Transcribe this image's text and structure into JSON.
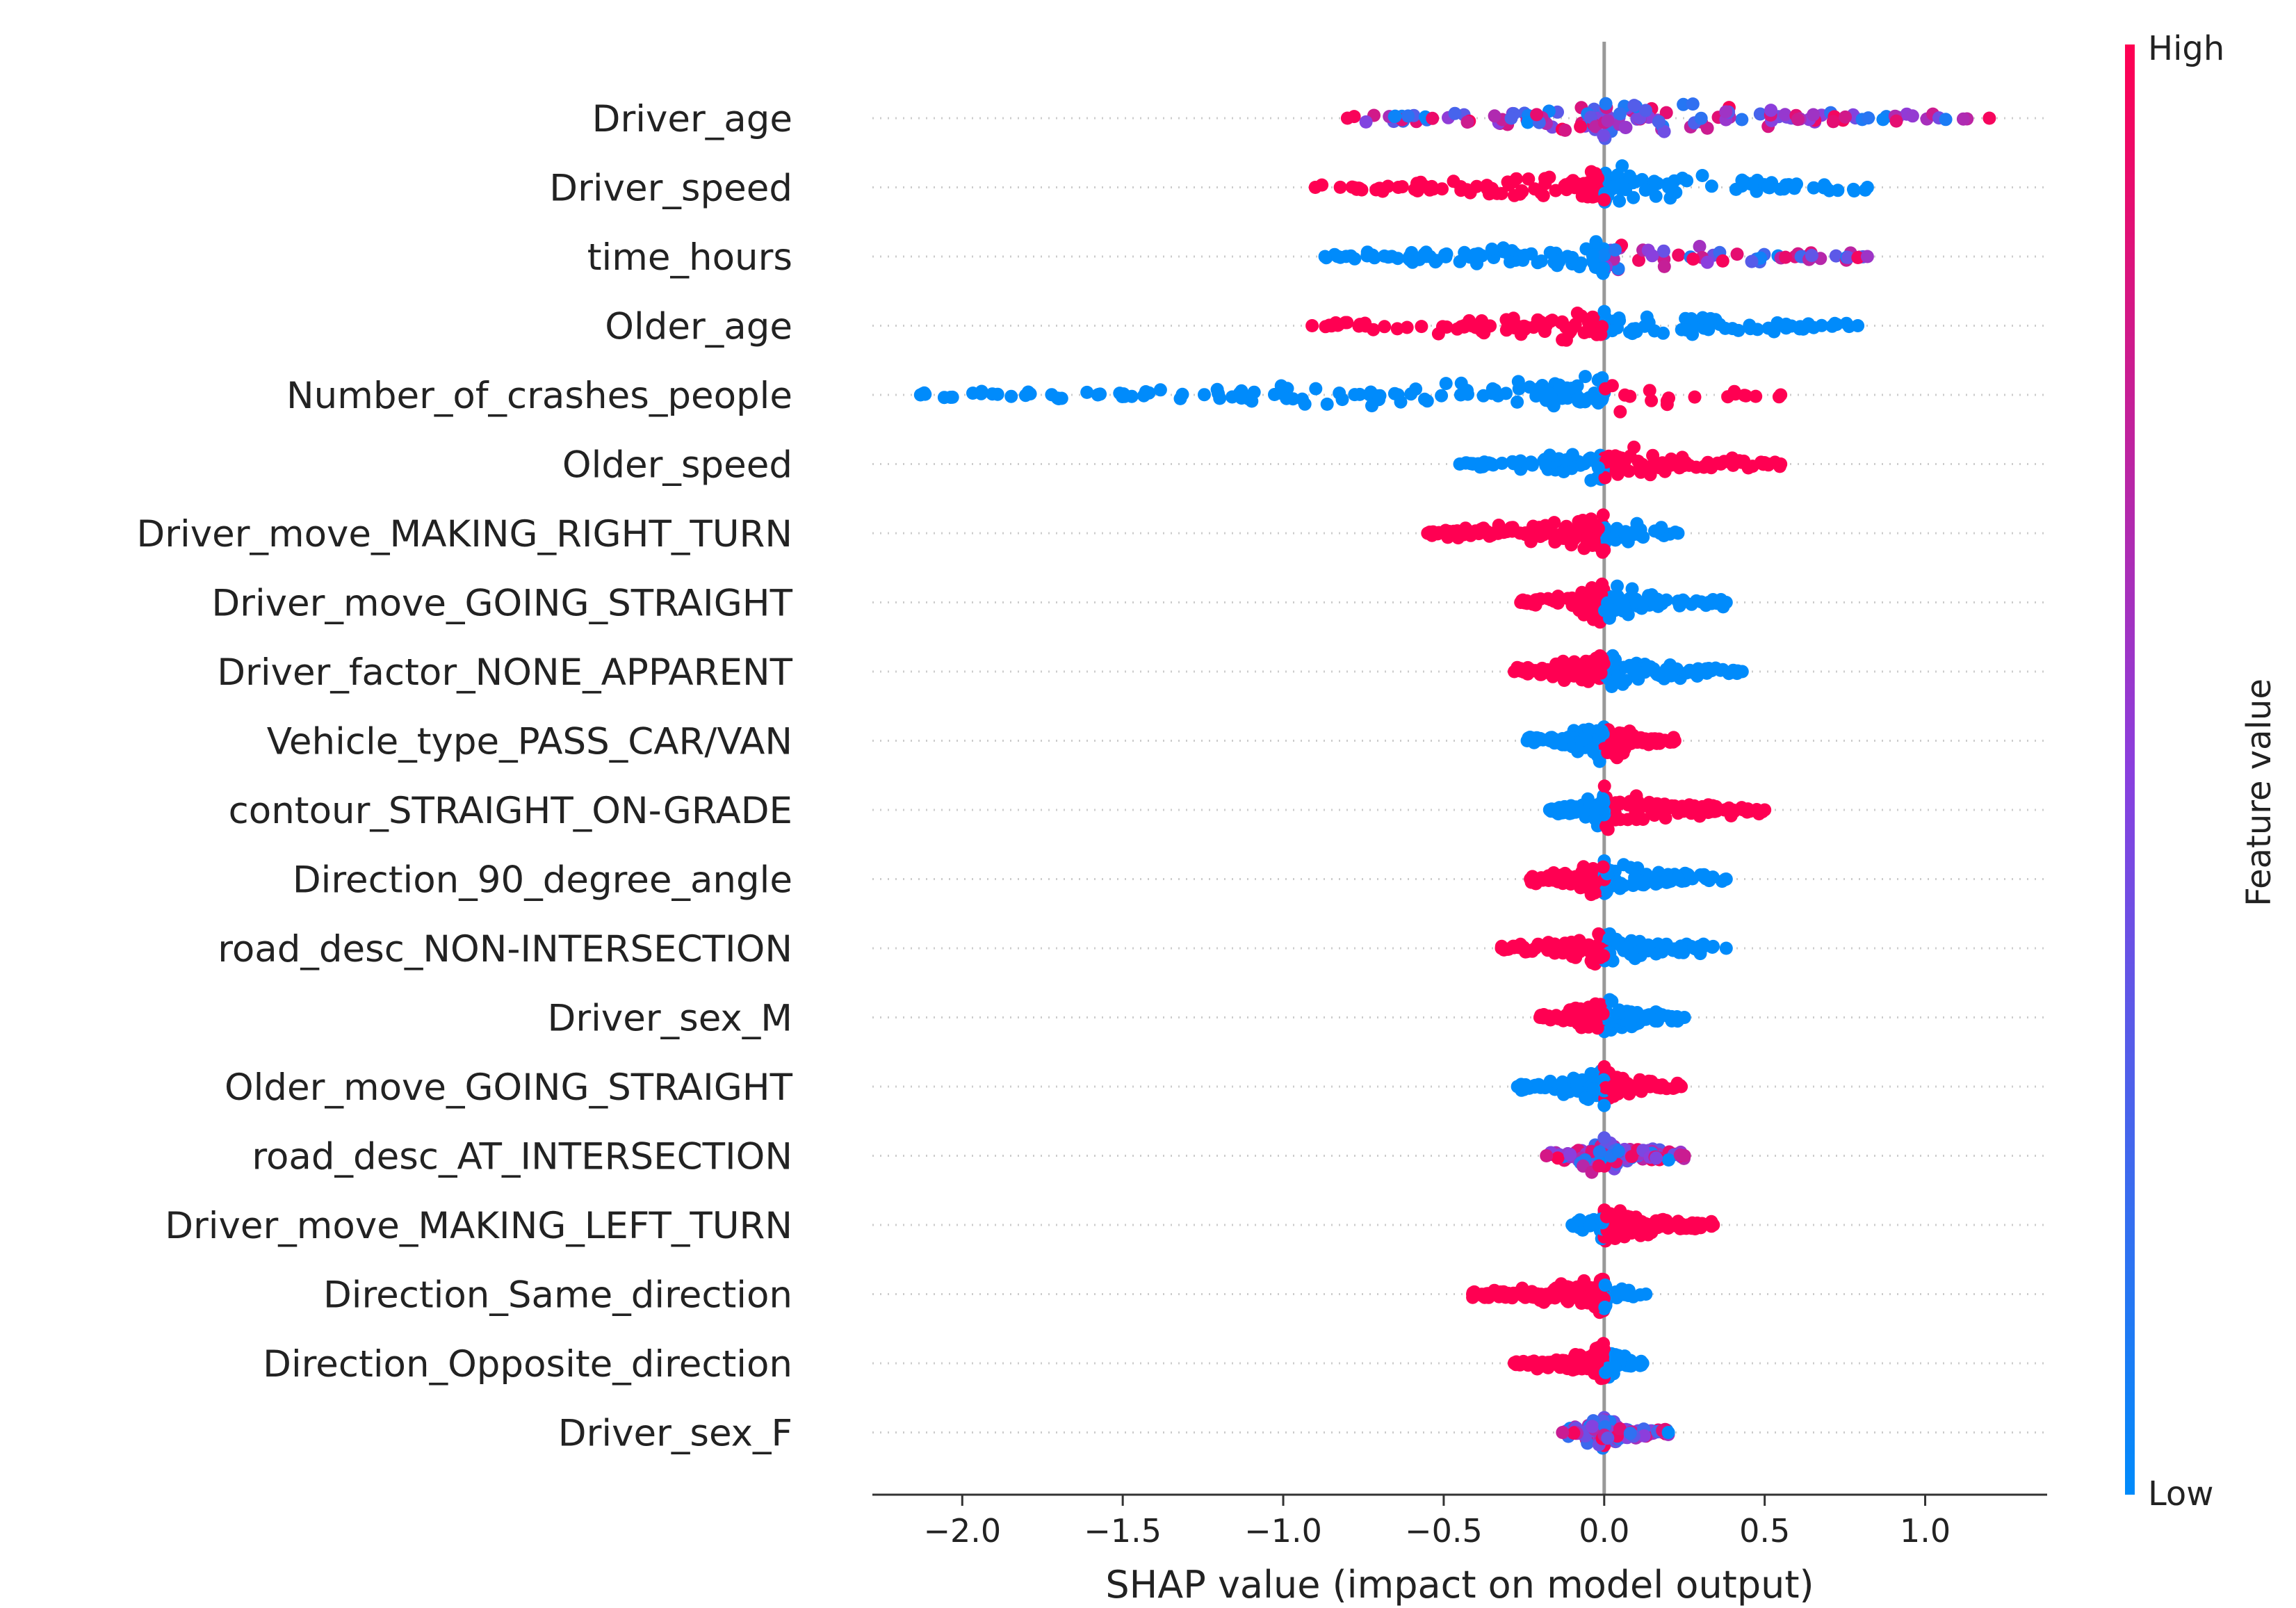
{
  "chart_data": {
    "type": "scatter",
    "subtype": "shap_beeswarm",
    "xlabel": "SHAP value (impact on model output)",
    "xlim": [
      -2.28,
      1.38
    ],
    "xticks": [
      -2.0,
      -1.5,
      -1.0,
      -0.5,
      0.0,
      0.5,
      1.0
    ],
    "xtick_labels": [
      "−2.0",
      "−1.5",
      "−1.0",
      "−0.5",
      "0.0",
      "0.5",
      "1.0"
    ],
    "colorbar": {
      "title": "Feature value",
      "high_label": "High",
      "low_label": "Low",
      "high_color": "#ff0052",
      "low_color": "#008bfb"
    },
    "features": [
      {
        "name": "Driver_age",
        "min": -0.8,
        "max": 1.2,
        "left_color": "mixed",
        "right_color": "mixed"
      },
      {
        "name": "Driver_speed",
        "min": -0.9,
        "max": 0.82,
        "left_color": "high",
        "right_color": "low"
      },
      {
        "name": "time_hours",
        "min": -0.87,
        "max": 0.82,
        "left_color": "low",
        "right_color": "mixed"
      },
      {
        "name": "Older_age",
        "min": -0.91,
        "max": 0.79,
        "left_color": "high",
        "right_color": "low"
      },
      {
        "name": "Number_of_crashes_people",
        "min": -2.13,
        "max": 0.55,
        "left_color": "low",
        "right_color": "high"
      },
      {
        "name": "Older_speed",
        "min": -0.45,
        "max": 0.55,
        "left_color": "low",
        "right_color": "high"
      },
      {
        "name": "Driver_move_MAKING_RIGHT_TURN",
        "min": -0.55,
        "max": 0.23,
        "left_color": "high",
        "right_color": "low"
      },
      {
        "name": "Driver_move_GOING_STRAIGHT",
        "min": -0.26,
        "max": 0.38,
        "left_color": "high",
        "right_color": "low"
      },
      {
        "name": "Driver_factor_NONE_APPARENT",
        "min": -0.28,
        "max": 0.43,
        "left_color": "high",
        "right_color": "low"
      },
      {
        "name": "Vehicle_type_PASS_CAR/VAN",
        "min": -0.24,
        "max": 0.22,
        "left_color": "low",
        "right_color": "high"
      },
      {
        "name": "contour_STRAIGHT_ON-GRADE",
        "min": -0.17,
        "max": 0.5,
        "left_color": "low",
        "right_color": "high"
      },
      {
        "name": "Direction_90_degree_angle",
        "min": -0.23,
        "max": 0.38,
        "left_color": "high",
        "right_color": "low"
      },
      {
        "name": "road_desc_NON-INTERSECTION",
        "min": -0.32,
        "max": 0.38,
        "left_color": "high",
        "right_color": "low"
      },
      {
        "name": "Driver_sex_M",
        "min": -0.2,
        "max": 0.25,
        "left_color": "high",
        "right_color": "low"
      },
      {
        "name": "Older_move_GOING_STRAIGHT",
        "min": -0.27,
        "max": 0.24,
        "left_color": "low",
        "right_color": "high"
      },
      {
        "name": "road_desc_AT_INTERSECTION",
        "min": -0.18,
        "max": 0.25,
        "left_color": "mixed",
        "right_color": "mixed"
      },
      {
        "name": "Driver_move_MAKING_LEFT_TURN",
        "min": -0.1,
        "max": 0.34,
        "left_color": "low",
        "right_color": "high"
      },
      {
        "name": "Direction_Same_direction",
        "min": -0.41,
        "max": 0.13,
        "left_color": "high",
        "right_color": "low"
      },
      {
        "name": "Direction_Opposite_direction",
        "min": -0.28,
        "max": 0.12,
        "left_color": "high",
        "right_color": "low"
      },
      {
        "name": "Driver_sex_F",
        "min": -0.13,
        "max": 0.2,
        "left_color": "mixed",
        "right_color": "mixed"
      }
    ]
  }
}
